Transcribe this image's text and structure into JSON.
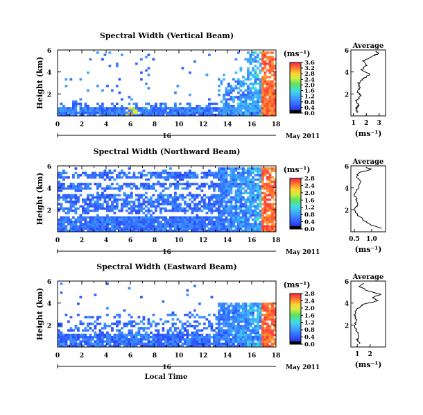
{
  "chart_data": [
    {
      "type": "heatmap",
      "title": "Spectral Width (Vertical Beam)",
      "ylabel": "Height (km)",
      "xlabel": "",
      "xlim": [
        0,
        18
      ],
      "ylim": [
        0,
        6
      ],
      "x_ticks": [
        "0",
        "2",
        "4",
        "6",
        "8",
        "10",
        "12",
        "14",
        "16",
        "18"
      ],
      "y_ticks": [
        "2",
        "4",
        "6"
      ],
      "date_day": "16",
      "date_label": "May 2011",
      "colorbar": {
        "unit": "(ms⁻¹)",
        "min": 0.0,
        "max": 3.6,
        "ticks": [
          "0.0",
          "0.4",
          "0.8",
          "1.2",
          "1.6",
          "2.0",
          "2.4",
          "2.8",
          "3.2",
          "3.6"
        ]
      },
      "average": {
        "title": "Average",
        "xlabel": "(ms⁻¹)",
        "xlim": [
          0.8,
          3.5
        ],
        "x_ticks": [
          "1",
          "2",
          "3"
        ],
        "y_ticks": [
          "2",
          "4",
          "6"
        ],
        "profile": [
          [
            0.3,
            1.3
          ],
          [
            0.7,
            1.2
          ],
          [
            1.0,
            1.4
          ],
          [
            1.4,
            1.2
          ],
          [
            1.8,
            1.6
          ],
          [
            2.2,
            1.3
          ],
          [
            2.6,
            1.5
          ],
          [
            3.0,
            1.4
          ],
          [
            3.4,
            1.8
          ],
          [
            3.8,
            2.3
          ],
          [
            4.2,
            1.6
          ],
          [
            4.6,
            2.0
          ],
          [
            5.0,
            1.8
          ],
          [
            5.4,
            2.4
          ],
          [
            5.7,
            3.0
          ],
          [
            5.9,
            2.7
          ]
        ]
      }
    },
    {
      "type": "heatmap",
      "title": "Spectral Width (Northward Beam)",
      "ylabel": "Height (km)",
      "xlabel": "",
      "xlim": [
        0,
        18
      ],
      "ylim": [
        0,
        6
      ],
      "x_ticks": [
        "0",
        "2",
        "4",
        "6",
        "8",
        "10",
        "12",
        "14",
        "16",
        "18"
      ],
      "y_ticks": [
        "2",
        "4",
        "6"
      ],
      "date_day": "16",
      "date_label": "May 2011",
      "colorbar": {
        "unit": "(ms⁻¹)",
        "min": 0.0,
        "max": 2.8,
        "ticks": [
          "0.0",
          "0.4",
          "0.8",
          "1.2",
          "1.6",
          "2.0",
          "2.4",
          "2.8"
        ]
      },
      "average": {
        "title": "Average",
        "xlabel": "(ms⁻¹)",
        "xlim": [
          0.4,
          1.4
        ],
        "x_ticks": [
          "0.5",
          "1.0"
        ],
        "y_ticks": [
          "2",
          "4",
          "6"
        ],
        "profile": [
          [
            0.3,
            1.3
          ],
          [
            0.6,
            1.0
          ],
          [
            1.0,
            0.8
          ],
          [
            1.5,
            0.6
          ],
          [
            2.0,
            0.5
          ],
          [
            2.5,
            0.6
          ],
          [
            3.0,
            0.55
          ],
          [
            3.5,
            0.5
          ],
          [
            4.0,
            0.6
          ],
          [
            4.5,
            0.7
          ],
          [
            5.0,
            0.55
          ],
          [
            5.4,
            0.65
          ],
          [
            5.7,
            1.0
          ],
          [
            5.9,
            0.8
          ]
        ]
      }
    },
    {
      "type": "heatmap",
      "title": "Spectral Width (Eastward Beam)",
      "ylabel": "Height (km)",
      "xlabel": "Local Time",
      "xlim": [
        0,
        18
      ],
      "ylim": [
        0,
        6
      ],
      "x_ticks": [
        "0",
        "2",
        "4",
        "6",
        "8",
        "10",
        "12",
        "14",
        "16",
        "18"
      ],
      "y_ticks": [
        "2",
        "4",
        "6"
      ],
      "date_day": "16",
      "date_label": "May 2011",
      "colorbar": {
        "unit": "(ms⁻¹)",
        "min": 0.0,
        "max": 2.8,
        "ticks": [
          "0.0",
          "0.4",
          "0.8",
          "1.2",
          "1.6",
          "2.0",
          "2.4",
          "2.8"
        ]
      },
      "average": {
        "title": "Average",
        "xlabel": "(ms⁻¹)",
        "xlim": [
          0.5,
          3.2
        ],
        "x_ticks": [
          "1",
          "2"
        ],
        "y_ticks": [
          "2",
          "4",
          "6"
        ],
        "profile": [
          [
            0.3,
            1.2
          ],
          [
            0.7,
            1.0
          ],
          [
            1.2,
            1.1
          ],
          [
            1.6,
            0.9
          ],
          [
            2.0,
            0.8
          ],
          [
            2.5,
            0.9
          ],
          [
            3.0,
            0.8
          ],
          [
            3.5,
            1.0
          ],
          [
            3.9,
            1.5
          ],
          [
            4.2,
            2.6
          ],
          [
            4.5,
            2.2
          ],
          [
            4.8,
            2.8
          ],
          [
            5.1,
            1.8
          ],
          [
            5.5,
            1.2
          ],
          [
            5.9,
            1.5
          ]
        ]
      }
    }
  ]
}
